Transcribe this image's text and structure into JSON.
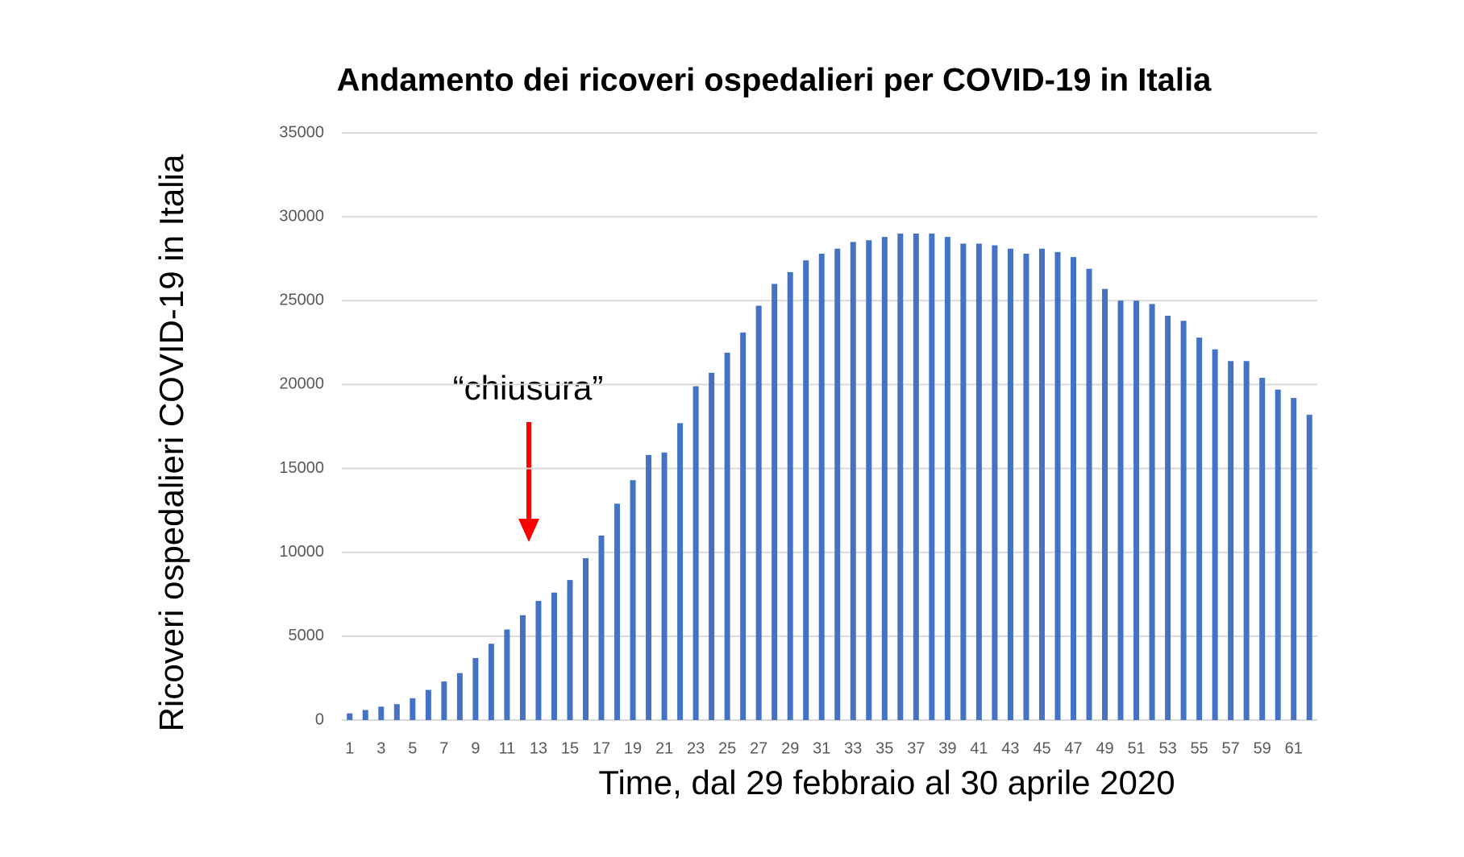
{
  "chart_data": {
    "type": "bar",
    "title": "Andamento dei ricoveri ospedalieri per COVID-19 in Italia",
    "x_label": "Time, dal 29 febbraio al 30 aprile 2020",
    "y_label": "Ricoveri ospedalieri COVID-19 in Italia",
    "annotation": "“chiusura”",
    "categories": [
      "1",
      null,
      "3",
      null,
      "5",
      null,
      "7",
      null,
      "9",
      null,
      "11",
      null,
      "13",
      null,
      "15",
      null,
      "17",
      null,
      "19",
      null,
      "21",
      null,
      "23",
      null,
      "25",
      null,
      "27",
      null,
      "29",
      null,
      "31",
      null,
      "33",
      null,
      "35",
      null,
      "37",
      null,
      "39",
      null,
      "41",
      null,
      "43",
      null,
      "45",
      null,
      "47",
      null,
      "49",
      null,
      "51",
      null,
      "53",
      null,
      "55",
      null,
      "57",
      null,
      "59",
      null,
      "61",
      null
    ],
    "values": [
      400,
      600,
      800,
      950,
      1300,
      1800,
      2300,
      2800,
      3700,
      4550,
      5400,
      6250,
      7100,
      7600,
      8350,
      9650,
      11000,
      12900,
      14300,
      15800,
      15950,
      17700,
      19900,
      20700,
      21900,
      23100,
      24700,
      26000,
      26700,
      27400,
      27800,
      28100,
      28500,
      28600,
      28800,
      29000,
      29000,
      29000,
      28800,
      28400,
      28400,
      28300,
      28100,
      27800,
      28100,
      27900,
      27600,
      26900,
      25700,
      25000,
      25000,
      24800,
      24100,
      23800,
      22800,
      22100,
      21400,
      21400,
      20400,
      19700,
      19200,
      18200
    ],
    "color": "#4472c4",
    "ylim": [
      0,
      35000
    ],
    "yticks": [
      0,
      5000,
      10000,
      15000,
      20000,
      25000,
      30000,
      35000
    ],
    "grid": true
  }
}
